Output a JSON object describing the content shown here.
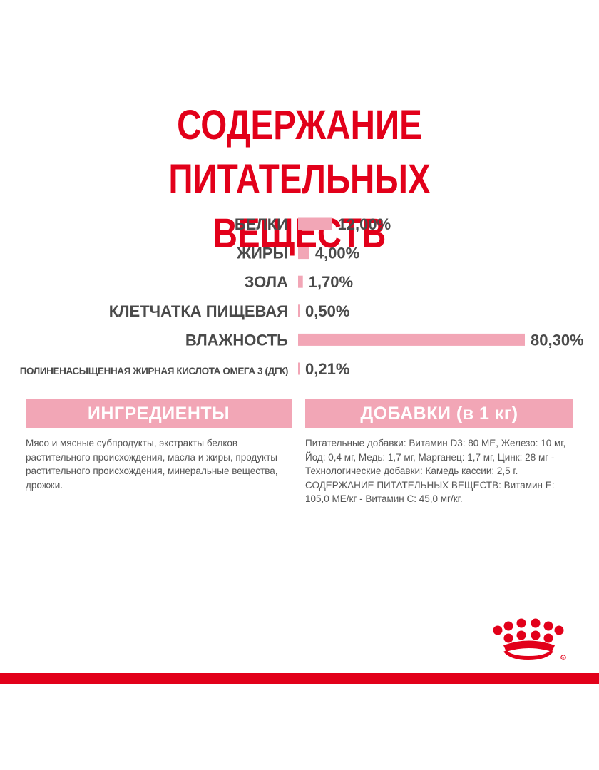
{
  "title_line1": "СОДЕРЖАНИЕ ПИТАТЕЛЬНЫХ",
  "title_line2": "ВЕЩЕСТВ",
  "colors": {
    "accent_red": "#e2001a",
    "bar_pink": "#f2a6b6",
    "text_gray": "#4a4a4a"
  },
  "chart_data": {
    "type": "bar",
    "orientation": "horizontal",
    "unit": "%",
    "xlim": [
      0,
      80.3
    ],
    "grid": false,
    "legend": "none",
    "categories": [
      "БЕЛКИ",
      "ЖИРЫ",
      "ЗОЛА",
      "КЛЕТЧАТКА ПИЩЕВАЯ",
      "ВЛАЖНОСТЬ",
      "ПОЛИНЕНАСЫЩЕННАЯ ЖИРНАЯ КИСЛОТА ОМЕГА 3 (ДГК)"
    ],
    "values": [
      12.0,
      4.0,
      1.7,
      0.5,
      80.3,
      0.21
    ],
    "value_labels": [
      "12,00%",
      "4,00%",
      "1,70%",
      "0,50%",
      "80,30%",
      "0,21%"
    ]
  },
  "ingredients": {
    "header": "ИНГРЕДИЕНТЫ",
    "text": "Мясо и мясные субпродукты, экстракты белков растительного происхождения, масла и жиры, продукты растительного происхождения, минеральные вещества, дрожжи."
  },
  "additives": {
    "header": "ДОБАВКИ (в 1 кг)",
    "text": "Питательные добавки: Витамин D3: 80 МЕ, Железо: 10 мг, Йод: 0,4 мг, Медь: 1,7 мг, Марганец: 1,7 мг, Цинк: 28 мг - Технологические добавки: Камедь кассии: 2,5 г. СОДЕРЖАНИЕ ПИТАТЕЛЬНЫХ ВЕЩЕСТВ: Витамин Е: 105,0 МЕ/кг - Витамин С: 45,0 мг/кг."
  },
  "logo": {
    "icon": "crown-logo-icon"
  }
}
